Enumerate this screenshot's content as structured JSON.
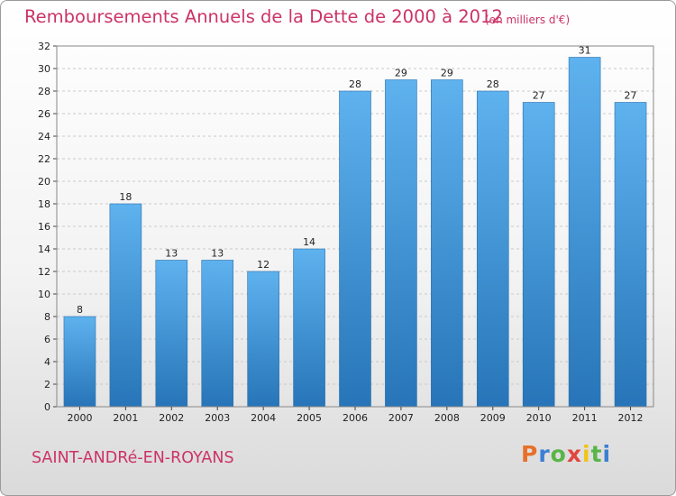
{
  "chart_data": {
    "type": "bar",
    "title": "Remboursements Annuels de la Dette de 2000 à 2012",
    "unit_note": "(en milliers d'€)",
    "categories": [
      "2000",
      "2001",
      "2002",
      "2003",
      "2004",
      "2005",
      "2006",
      "2007",
      "2008",
      "2009",
      "2010",
      "2011",
      "2012"
    ],
    "values": [
      8,
      18,
      13,
      13,
      12,
      14,
      28,
      29,
      29,
      28,
      27,
      31,
      27
    ],
    "ylim": [
      0,
      32
    ],
    "yticks": [
      0,
      2,
      4,
      6,
      8,
      10,
      12,
      14,
      16,
      18,
      20,
      22,
      24,
      26,
      28,
      30,
      32
    ],
    "grid": true,
    "xlabel": "",
    "ylabel": "",
    "bar_color": "#3d8fd6"
  },
  "footer": {
    "commune": "SAINT-ANDRé-EN-ROYANS",
    "logo_letters": [
      "P",
      "r",
      "o",
      "x",
      "i",
      "t",
      "i"
    ],
    "logo_colors": [
      "#e8702a",
      "#3b7fd4",
      "#59b547",
      "#e2443f",
      "#f0c419",
      "#59b547",
      "#3b7fd4"
    ]
  },
  "colors": {
    "accent": "#cc3366"
  }
}
